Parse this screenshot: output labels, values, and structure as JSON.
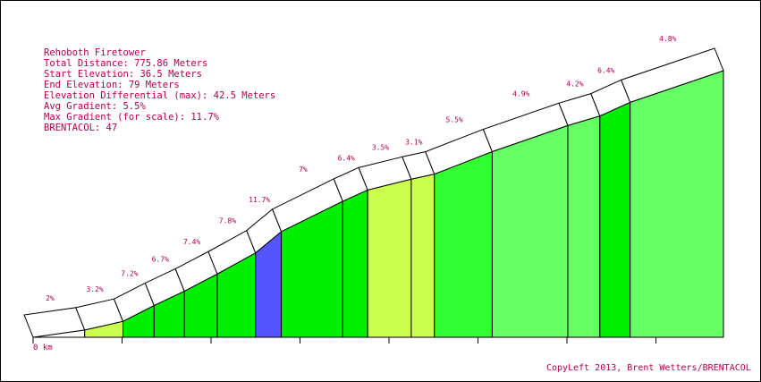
{
  "info": {
    "title": "Rehoboth Firetower",
    "total_distance": "Total Distance: 775.86 Meters",
    "start_elevation": "Start Elevation: 36.5 Meters",
    "end_elevation": "End Elevation: 79 Meters",
    "elevation_differential": "Elevation Differential (max): 42.5 Meters",
    "avg_gradient": "Avg Gradient: 5.5%",
    "max_gradient": "Max Gradient (for scale): 11.7%",
    "brentacol": "BRENTACOL: 47"
  },
  "axis": {
    "origin_label": "0 km"
  },
  "credit": "CopyLeft 2013, Brent Wetters/BRENTACOL",
  "colors": {
    "grade_0_3": "#ffffff",
    "grade_3_4": "#ccff4d",
    "grade_4_5": "#66ff66",
    "grade_5_6": "#33ff33",
    "grade_6_9": "#00ee00",
    "grade_9_plus": "#5555ff",
    "text": "#b00050"
  },
  "chart_data": {
    "type": "area",
    "title": "Rehoboth Firetower",
    "xlabel": "",
    "ylabel": "",
    "xlim": [
      0,
      775.86
    ],
    "ylim": [
      36.5,
      79
    ],
    "x_unit": "meters",
    "y_unit": "meters",
    "grid": false,
    "segments": [
      {
        "start": 0,
        "end": 58,
        "grade_label": "2%",
        "grade": 2.0
      },
      {
        "start": 58,
        "end": 101,
        "grade_label": "3.2%",
        "grade": 3.2
      },
      {
        "start": 101,
        "end": 136,
        "grade_label": "7.2%",
        "grade": 7.2
      },
      {
        "start": 136,
        "end": 170,
        "grade_label": "6.7%",
        "grade": 6.7
      },
      {
        "start": 170,
        "end": 207,
        "grade_label": "7.4%",
        "grade": 7.4
      },
      {
        "start": 207,
        "end": 250,
        "grade_label": "7.8%",
        "grade": 7.8
      },
      {
        "start": 250,
        "end": 279,
        "grade_label": "11.7%",
        "grade": 11.7
      },
      {
        "start": 279,
        "end": 348,
        "grade_label": "7%",
        "grade": 7.0
      },
      {
        "start": 348,
        "end": 376,
        "grade_label": "6.4%",
        "grade": 6.4
      },
      {
        "start": 376,
        "end": 425,
        "grade_label": "3.5%",
        "grade": 3.5
      },
      {
        "start": 425,
        "end": 451,
        "grade_label": "3.1%",
        "grade": 3.1
      },
      {
        "start": 451,
        "end": 516,
        "grade_label": "5.5%",
        "grade": 5.5
      },
      {
        "start": 516,
        "end": 601,
        "grade_label": "4.9%",
        "grade": 4.9
      },
      {
        "start": 601,
        "end": 637,
        "grade_label": "4.2%",
        "grade": 4.2
      },
      {
        "start": 637,
        "end": 671,
        "grade_label": "6.4%",
        "grade": 6.4
      },
      {
        "start": 671,
        "end": 775.86,
        "grade_label": "4.8%",
        "grade": 4.8
      }
    ]
  }
}
